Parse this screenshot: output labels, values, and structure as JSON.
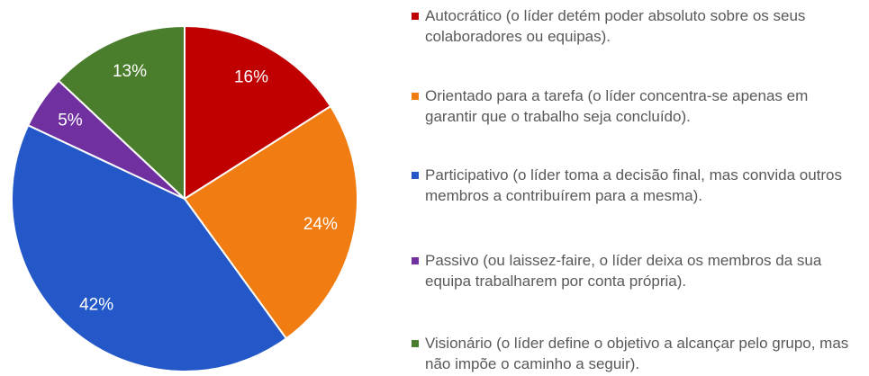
{
  "chart_data": {
    "type": "pie",
    "categories": [
      "Autocrático (o líder detém poder absoluto sobre os seus colaboradores ou equipas).",
      "Orientado para a tarefa (o líder concentra-se apenas em garantir que o trabalho seja concluído).",
      "Participativo (o líder toma a decisão final, mas convida outros membros a contribuírem para a mesma).",
      "Passivo (ou laissez-faire, o líder deixa os membros da sua equipa trabalharem por conta própria).",
      "Visionário (o líder define o objetivo a alcançar pelo grupo, mas não impõe o caminho a seguir)."
    ],
    "values": [
      16,
      24,
      42,
      5,
      13
    ],
    "value_labels": [
      "16%",
      "24%",
      "42%",
      "5%",
      "13%"
    ],
    "colors": [
      "#c00000",
      "#f07c12",
      "#2458c9",
      "#7030a0",
      "#4a7e2c"
    ],
    "legend": "right"
  }
}
